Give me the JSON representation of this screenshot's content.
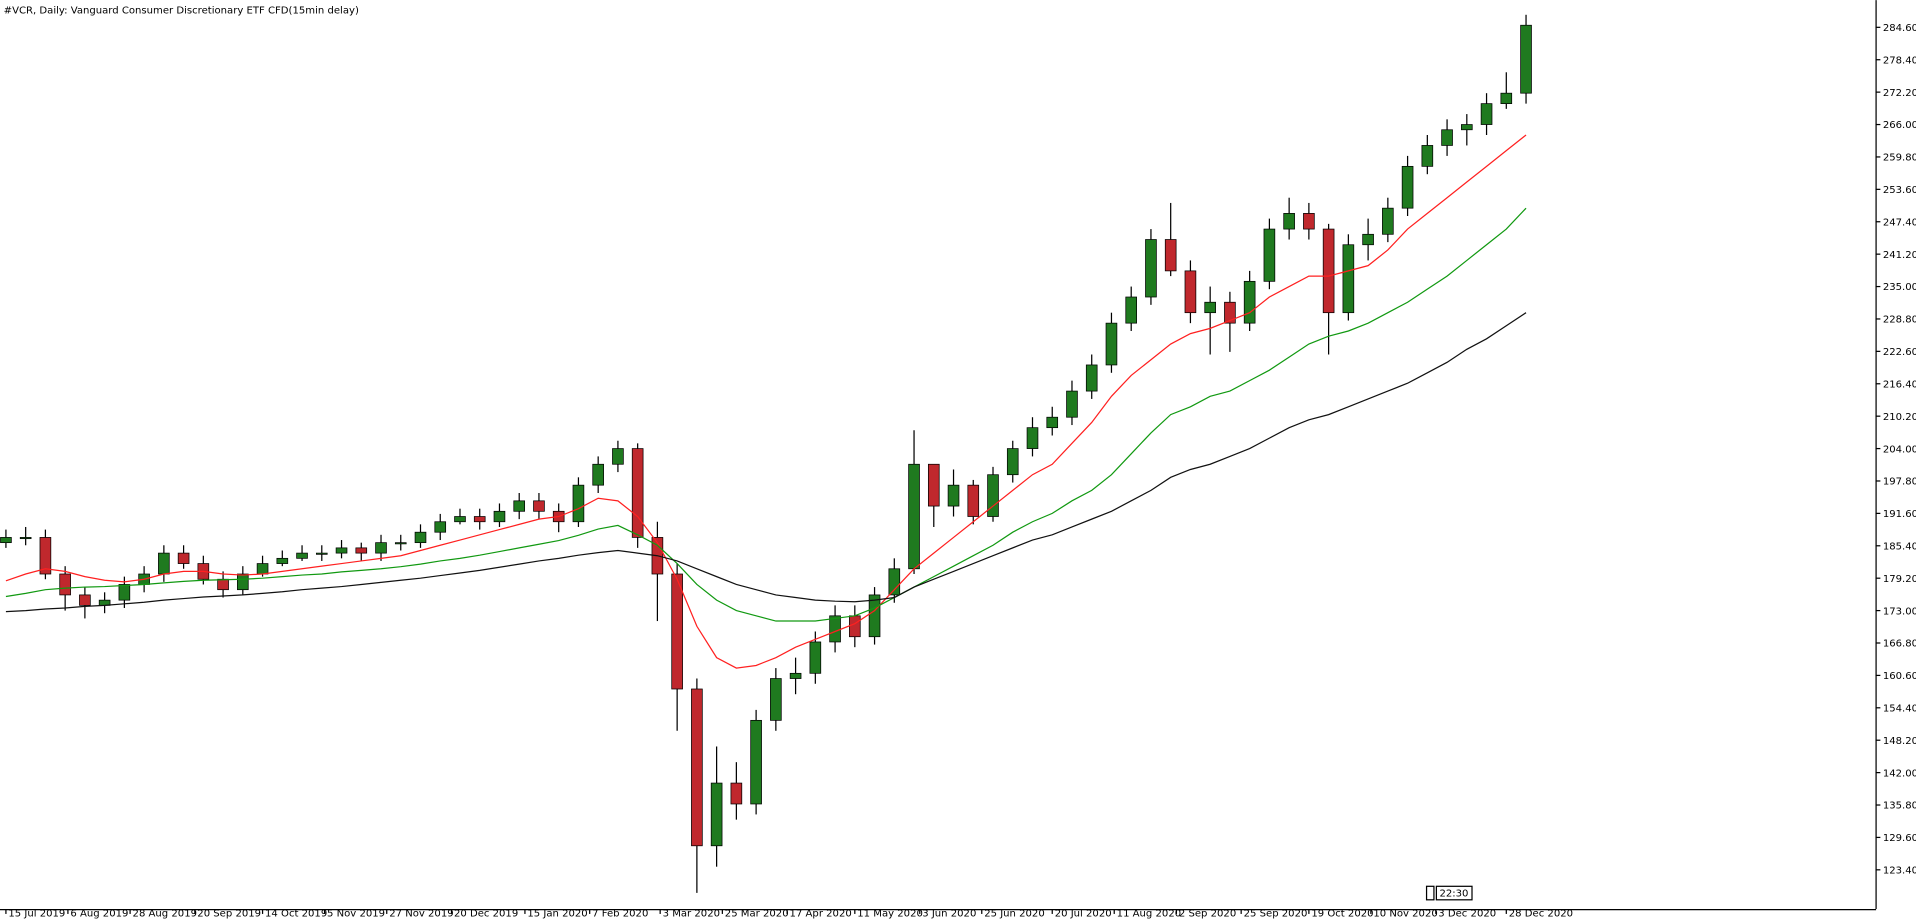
{
  "chart_data": {
    "type": "candlestick",
    "title": "#VCR, Daily:  Vanguard Consumer Discretionary ETF CFD(15min delay)",
    "timer": "22:30",
    "up_color": "#1f7a1f",
    "down_color": "#c0282d",
    "wick_color": "#000000",
    "open": [
      186,
      187,
      187,
      180,
      176,
      174,
      175,
      178,
      180,
      184,
      182,
      179,
      177,
      180,
      182,
      183,
      184,
      184,
      185,
      184,
      186,
      186,
      188,
      190,
      191,
      190,
      192,
      194,
      192,
      190,
      197,
      201,
      204,
      187,
      180,
      158,
      128,
      140,
      136,
      152,
      160,
      161,
      167,
      172,
      168,
      176,
      181,
      201,
      193,
      197,
      191,
      199,
      204,
      208,
      210,
      215,
      220,
      228,
      233,
      244,
      238,
      230,
      232,
      228,
      236,
      246,
      249,
      246,
      230,
      243,
      245,
      250,
      258,
      262,
      265,
      266,
      270,
      272
    ],
    "high": [
      188.5,
      189,
      188.5,
      181.5,
      177.5,
      176.5,
      179.5,
      181.5,
      185.5,
      185.5,
      183.5,
      180.5,
      181.5,
      183.5,
      184.5,
      185.5,
      185.5,
      186.5,
      186,
      187.5,
      187.5,
      189.5,
      191.5,
      192.5,
      192.5,
      193.5,
      195.5,
      195.5,
      193.5,
      198.5,
      202.5,
      205.5,
      205,
      190,
      182,
      160,
      147,
      144,
      154,
      162,
      164,
      169,
      174,
      174,
      177.5,
      183,
      207.5,
      201,
      200,
      198,
      200.5,
      205.5,
      210,
      212,
      217,
      222,
      230,
      235,
      246,
      251,
      240,
      235,
      234,
      238,
      248,
      252,
      251,
      247,
      245,
      248,
      252,
      260,
      264,
      267,
      268,
      272,
      276,
      287
    ],
    "low": [
      185,
      185.5,
      179,
      173,
      171.5,
      172.5,
      173.5,
      176.5,
      178.5,
      181,
      178,
      175.5,
      176,
      179.5,
      181.5,
      182.5,
      182.5,
      183,
      182.5,
      182.5,
      184.5,
      185,
      186.5,
      189.5,
      188.5,
      189,
      190.5,
      190.5,
      188,
      189,
      195.5,
      199.5,
      185,
      171,
      150,
      119,
      124,
      133,
      134,
      150,
      157,
      159,
      165,
      166,
      166.5,
      174.5,
      180,
      189,
      191,
      189.5,
      190,
      197.5,
      202.5,
      206.5,
      208.5,
      213.5,
      218.5,
      226.5,
      231.5,
      237,
      228,
      222,
      222.5,
      226.5,
      234.5,
      244,
      244,
      222,
      228.5,
      240,
      243.5,
      248.5,
      256.5,
      260,
      262,
      264,
      269,
      270
    ],
    "close": [
      187,
      187,
      180,
      176,
      174,
      175,
      178,
      180,
      184,
      182,
      179,
      177,
      180,
      182,
      183,
      184,
      184,
      185,
      184,
      186,
      186,
      188,
      190,
      191,
      190,
      192,
      194,
      192,
      190,
      197,
      201,
      204,
      187,
      180,
      158,
      128,
      140,
      136,
      152,
      160,
      161,
      167,
      172,
      168,
      176,
      181,
      201,
      193,
      197,
      191,
      199,
      204,
      208,
      210,
      215,
      220,
      228,
      233,
      244,
      238,
      230,
      232,
      228,
      236,
      246,
      249,
      246,
      230,
      243,
      245,
      250,
      258,
      262,
      265,
      266,
      270,
      272,
      285
    ],
    "lines": [
      {
        "color": "#ff2020",
        "values": [
          178.7,
          180,
          181,
          180.5,
          179.5,
          178.8,
          178.5,
          179,
          180,
          180.5,
          180.5,
          180,
          179.8,
          180,
          180.5,
          181,
          181.5,
          182,
          182.5,
          183,
          183.5,
          184.5,
          185.5,
          186.5,
          187.5,
          188.5,
          189.5,
          190.5,
          191,
          192.5,
          194.5,
          194,
          191,
          186,
          179,
          170,
          164,
          162,
          162.5,
          164,
          166,
          167.5,
          169,
          170.5,
          173,
          177,
          181,
          184,
          187,
          190,
          193,
          196,
          199,
          201,
          205,
          209,
          214,
          218,
          221,
          224,
          226,
          227,
          228.5,
          230,
          233,
          235,
          237,
          237,
          238,
          239,
          242,
          246,
          249,
          252,
          255,
          258,
          261,
          264
        ]
      },
      {
        "color": "#119911",
        "values": [
          175.7,
          176.3,
          177,
          177.3,
          177.5,
          177.6,
          177.8,
          178,
          178.3,
          178.6,
          178.8,
          178.9,
          179,
          179.2,
          179.5,
          179.8,
          180,
          180.4,
          180.7,
          181,
          181.4,
          181.9,
          182.5,
          183,
          183.6,
          184.3,
          185,
          185.7,
          186.4,
          187.4,
          188.6,
          189.3,
          187.5,
          185.5,
          182,
          178,
          175,
          173,
          172,
          171,
          171,
          171,
          171.5,
          172,
          173.5,
          175.5,
          177.5,
          179.5,
          181.5,
          183.5,
          185.5,
          188,
          190,
          191.6,
          194,
          196,
          199,
          203,
          207,
          210.5,
          212,
          214,
          215,
          217,
          219,
          221.5,
          224,
          225.5,
          226.5,
          228,
          230,
          232,
          234.5,
          237,
          240,
          243,
          246,
          250
        ]
      },
      {
        "color": "#111111",
        "values": [
          172.8,
          173,
          173.3,
          173.5,
          173.8,
          174,
          174.3,
          174.6,
          175,
          175.3,
          175.6,
          175.8,
          176,
          176.3,
          176.6,
          177,
          177.3,
          177.6,
          178,
          178.4,
          178.8,
          179.2,
          179.7,
          180.2,
          180.7,
          181.3,
          181.9,
          182.5,
          183,
          183.6,
          184.1,
          184.5,
          184,
          183.5,
          182.5,
          181,
          179.5,
          178,
          177,
          176,
          175.5,
          175,
          174.8,
          174.7,
          175,
          175.5,
          177.5,
          179,
          180.5,
          182,
          183.5,
          185,
          186.5,
          187.5,
          189,
          190.5,
          192,
          194,
          196,
          198.5,
          200,
          201,
          202.5,
          204,
          206,
          208,
          209.5,
          210.5,
          212,
          213.5,
          215,
          216.5,
          218.5,
          220.5,
          223,
          225,
          227.5,
          230
        ]
      }
    ],
    "xlim": [
      -0.3,
      94.7
    ],
    "xticks": [
      {
        "value": 0,
        "label": "15 Jul 2019"
      },
      {
        "value": 3.14,
        "label": "6 Aug 2019"
      },
      {
        "value": 6.29,
        "label": "28 Aug 2019"
      },
      {
        "value": 9.57,
        "label": "20 Sep 2019"
      },
      {
        "value": 13,
        "label": "14 Oct 2019"
      },
      {
        "value": 16.14,
        "label": "5 Nov 2019"
      },
      {
        "value": 19.29,
        "label": "27 Nov 2019"
      },
      {
        "value": 22.57,
        "label": "20 Dec 2019"
      },
      {
        "value": 26.29,
        "label": "15 Jan 2020"
      },
      {
        "value": 29.57,
        "label": "7 Feb 2020"
      },
      {
        "value": 33.14,
        "label": "3 Mar 2020"
      },
      {
        "value": 36.29,
        "label": "25 Mar 2020"
      },
      {
        "value": 39.57,
        "label": "17 Apr 2020"
      },
      {
        "value": 43,
        "label": "11 May 2020"
      },
      {
        "value": 46.29,
        "label": "3 Jun 2020"
      },
      {
        "value": 49.43,
        "label": "25 Jun 2020"
      },
      {
        "value": 53,
        "label": "20 Jul 2020"
      },
      {
        "value": 56.14,
        "label": "11 Aug 2020"
      },
      {
        "value": 59.29,
        "label": "2 Sep 2020"
      },
      {
        "value": 62.57,
        "label": "25 Sep 2020"
      },
      {
        "value": 66,
        "label": "19 Oct 2020"
      },
      {
        "value": 69.14,
        "label": "10 Nov 2020"
      },
      {
        "value": 72.43,
        "label": "3 Dec 2020"
      },
      {
        "value": 76,
        "label": "28 Dec 2020"
      }
    ],
    "ylim": [
      115.9,
      289.8
    ],
    "yticks": [
      {
        "value": 123.4,
        "label": "123.40"
      },
      {
        "value": 129.6,
        "label": "129.60"
      },
      {
        "value": 135.8,
        "label": "135.80"
      },
      {
        "value": 142,
        "label": "142.00"
      },
      {
        "value": 148.2,
        "label": "148.20"
      },
      {
        "value": 154.4,
        "label": "154.40"
      },
      {
        "value": 160.6,
        "label": "160.60"
      },
      {
        "value": 166.8,
        "label": "166.80"
      },
      {
        "value": 173,
        "label": "173.00"
      },
      {
        "value": 179.2,
        "label": "179.20"
      },
      {
        "value": 185.4,
        "label": "185.40"
      },
      {
        "value": 191.6,
        "label": "191.60"
      },
      {
        "value": 197.8,
        "label": "197.80"
      },
      {
        "value": 204,
        "label": "204.00"
      },
      {
        "value": 210.2,
        "label": "210.20"
      },
      {
        "value": 216.4,
        "label": "216.40"
      },
      {
        "value": 222.6,
        "label": "222.60"
      },
      {
        "value": 228.8,
        "label": "228.80"
      },
      {
        "value": 235,
        "label": "235.00"
      },
      {
        "value": 241.2,
        "label": "241.20"
      },
      {
        "value": 247.4,
        "label": "247.40"
      },
      {
        "value": 253.6,
        "label": "253.60"
      },
      {
        "value": 259.8,
        "label": "259.80"
      },
      {
        "value": 266,
        "label": "266.00"
      },
      {
        "value": 272.2,
        "label": "272.20"
      },
      {
        "value": 278.4,
        "label": "278.40"
      },
      {
        "value": 284.6,
        "label": "284.60"
      }
    ]
  }
}
